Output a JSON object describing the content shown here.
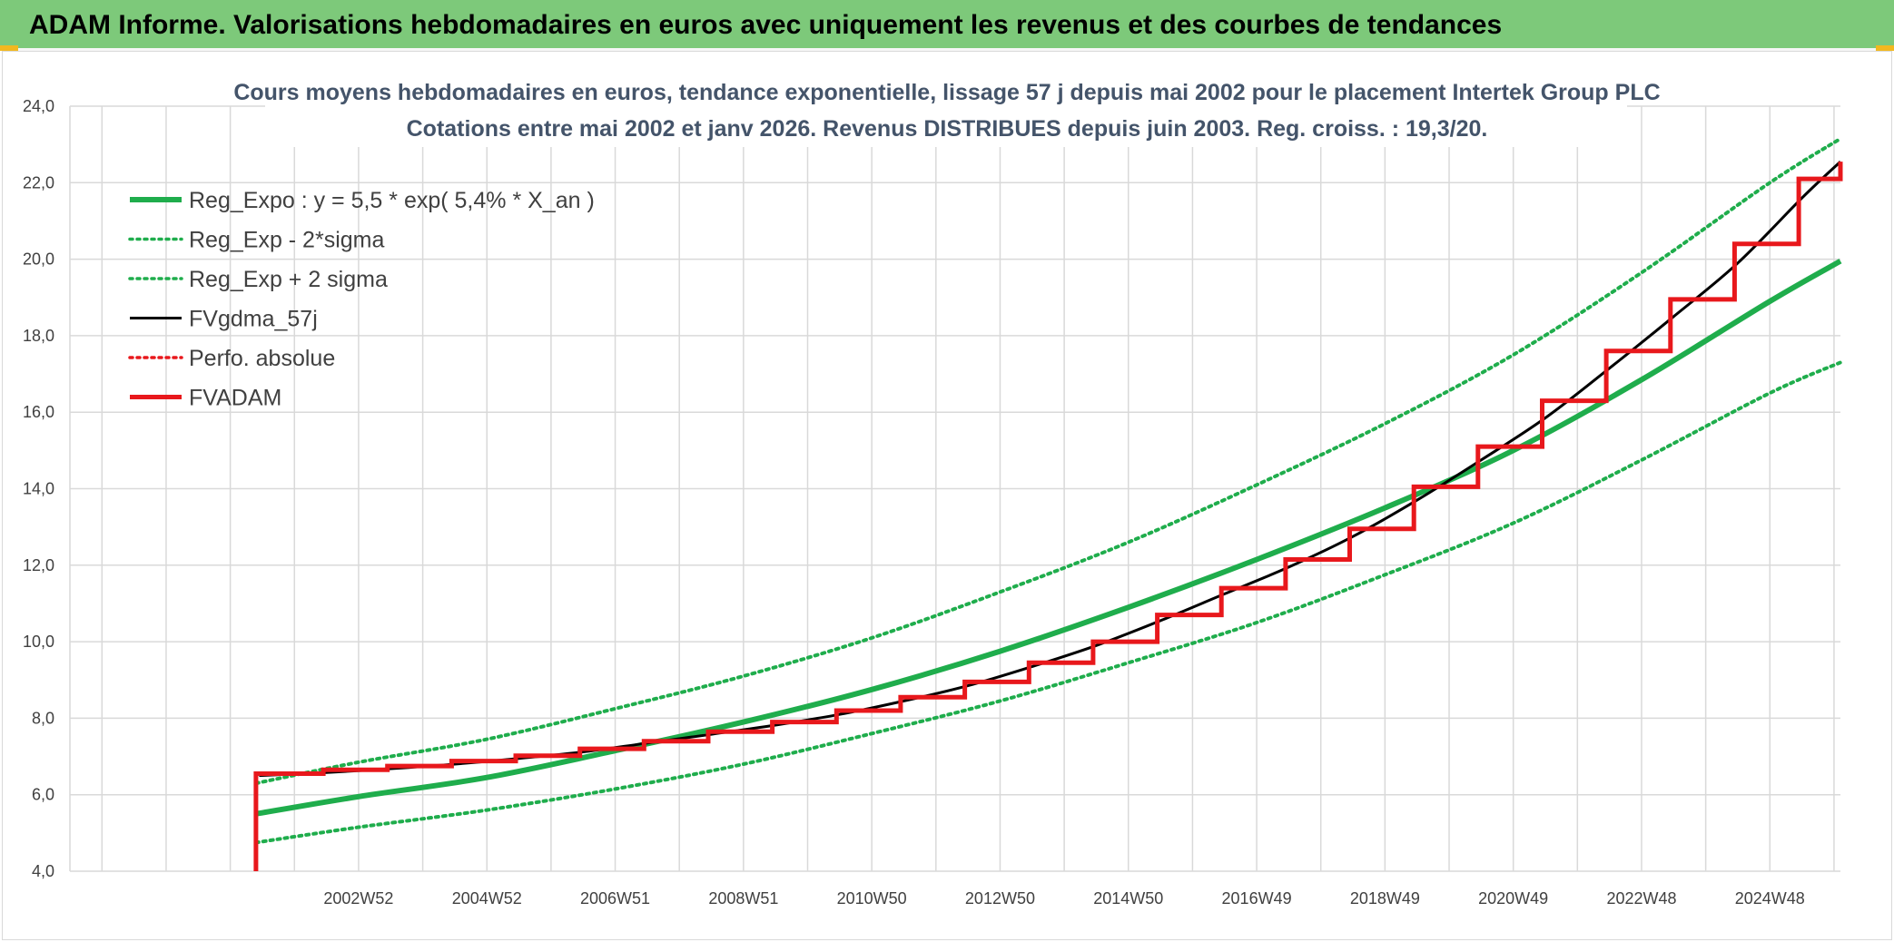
{
  "banner": {
    "title": "ADAM Informe. Valorisations hebdomadaires en euros avec uniquement les revenus et des courbes de tendances",
    "background": "#7dc97a"
  },
  "chart_data": {
    "type": "line",
    "title_lines": [
      "Cours moyens hebdomadaires en euros, tendance exponentielle, lissage 57 j depuis mai 2002 pour le placement Intertek Group PLC",
      "Cotations entre mai 2002 et janv 2026. Revenus DISTRIBUES depuis juin 2003. Reg. croiss. : 19,3/20."
    ],
    "xlabel": "",
    "ylabel": "",
    "ylim": [
      4,
      24
    ],
    "ytick_values": [
      4,
      6,
      8,
      10,
      12,
      14,
      16,
      18,
      20,
      22,
      24
    ],
    "yticks": [
      "4,0",
      "6,0",
      "8,0",
      "10,0",
      "12,0",
      "14,0",
      "16,0",
      "18,0",
      "20,0",
      "22,0",
      "24,0"
    ],
    "xlim": [
      1998.5,
      2026.1
    ],
    "xtick_values": [
      2003.0,
      2005.0,
      2007.0,
      2009.0,
      2011.0,
      2013.0,
      2015.0,
      2017.0,
      2019.0,
      2021.0,
      2023.0,
      2025.0
    ],
    "xticks": [
      "2002W52",
      "2004W52",
      "2006W51",
      "2008W51",
      "2010W50",
      "2012W50",
      "2014W50",
      "2016W49",
      "2018W49",
      "2020W49",
      "2022W48",
      "2024W48"
    ],
    "grid": true,
    "legend_position": "top-left",
    "series": [
      {
        "name": "Reg_Expo : y = 5,5 * exp( 5,4% *  X_an )",
        "color": "#1fad4c",
        "style": "solid",
        "width": 6,
        "x": [
          2001.4,
          2003,
          2005,
          2007,
          2009,
          2011,
          2013,
          2015,
          2017,
          2019,
          2021,
          2023,
          2025,
          2026.1
        ],
        "y": [
          5.5,
          5.95,
          6.45,
          7.15,
          7.9,
          8.75,
          9.75,
          10.9,
          12.15,
          13.5,
          15.0,
          16.85,
          18.9,
          19.95
        ]
      },
      {
        "name": "Reg_Exp - 2*sigma",
        "color": "#1fad4c",
        "style": "dotted",
        "width": 4,
        "x": [
          2001.4,
          2003,
          2005,
          2007,
          2009,
          2011,
          2013,
          2015,
          2017,
          2019,
          2021,
          2023,
          2025,
          2026.1
        ],
        "y": [
          4.75,
          5.15,
          5.6,
          6.15,
          6.8,
          7.6,
          8.45,
          9.45,
          10.5,
          11.75,
          13.1,
          14.75,
          16.5,
          17.3
        ]
      },
      {
        "name": "Reg_Exp + 2 sigma",
        "color": "#1fad4c",
        "style": "dotted",
        "width": 4,
        "x": [
          2001.4,
          2003,
          2005,
          2007,
          2009,
          2011,
          2013,
          2015,
          2017,
          2019,
          2021,
          2023,
          2025,
          2026.1
        ],
        "y": [
          6.3,
          6.85,
          7.45,
          8.25,
          9.1,
          10.1,
          11.3,
          12.6,
          14.1,
          15.7,
          17.5,
          19.65,
          22.0,
          23.15
        ]
      },
      {
        "name": "FVgdma_57j",
        "color": "#000000",
        "style": "solid",
        "width": 3,
        "x": [
          2001.45,
          2002.5,
          2003.5,
          2004.5,
          2005.5,
          2006.5,
          2007.5,
          2008.5,
          2009.5,
          2010.5,
          2011.5,
          2012.5,
          2013.5,
          2014.5,
          2015.5,
          2016.5,
          2017.5,
          2018.5,
          2019.5,
          2020.5,
          2021.5,
          2022.5,
          2023.5,
          2024.5,
          2025.5,
          2026.1
        ],
        "y": [
          6.5,
          6.58,
          6.68,
          6.8,
          6.95,
          7.12,
          7.35,
          7.58,
          7.82,
          8.1,
          8.45,
          8.85,
          9.35,
          9.9,
          10.55,
          11.25,
          11.95,
          12.75,
          13.7,
          14.75,
          15.85,
          17.15,
          18.5,
          19.9,
          21.6,
          22.55
        ]
      },
      {
        "name": "Perfo. absolue",
        "color": "#e8181c",
        "style": "dotted",
        "width": 3,
        "x": [],
        "y": []
      },
      {
        "name": "FVADAM",
        "color": "#e8181c",
        "style": "solid",
        "width": 5,
        "step": true,
        "x": [
          2001.4,
          2001.4,
          2002.45,
          2003.45,
          2004.45,
          2005.45,
          2006.45,
          2007.45,
          2008.45,
          2009.45,
          2010.45,
          2011.45,
          2012.45,
          2013.45,
          2014.45,
          2015.45,
          2016.45,
          2017.45,
          2018.45,
          2019.45,
          2020.45,
          2021.45,
          2022.45,
          2023.45,
          2024.45,
          2025.45,
          2026.1
        ],
        "y": [
          4.0,
          6.55,
          6.65,
          6.75,
          6.88,
          7.02,
          7.2,
          7.4,
          7.65,
          7.9,
          8.2,
          8.55,
          8.95,
          9.45,
          10.0,
          10.7,
          11.4,
          12.15,
          12.95,
          14.05,
          15.1,
          16.3,
          17.6,
          18.95,
          20.4,
          22.1,
          22.55
        ]
      }
    ]
  }
}
